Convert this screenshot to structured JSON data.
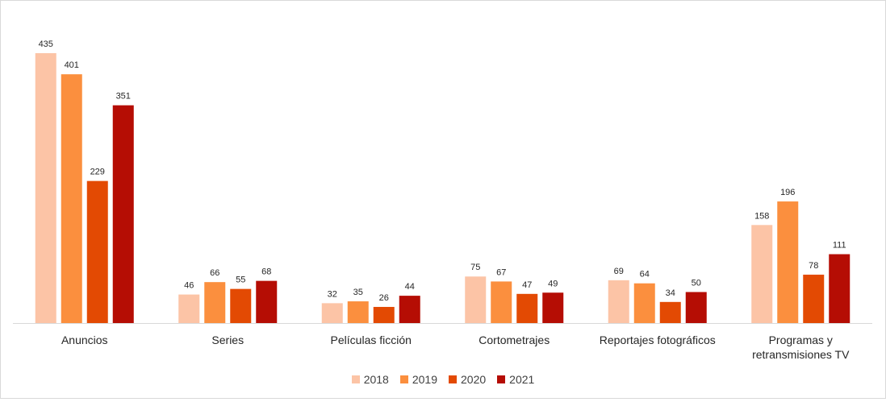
{
  "chart_data": {
    "type": "bar",
    "title": "",
    "xlabel": "",
    "ylabel": "",
    "ylim": [
      0,
      460
    ],
    "grid": false,
    "legend_position": "bottom",
    "categories": [
      "Anuncios",
      "Series",
      "Películas ficción",
      "Cortometrajes",
      "Reportajes fotográficos",
      "Programas y retransmisiones TV"
    ],
    "series": [
      {
        "name": "2018",
        "color": "#fcc4a6",
        "values": [
          435,
          46,
          32,
          75,
          69,
          158
        ]
      },
      {
        "name": "2019",
        "color": "#fb8f3e",
        "values": [
          401,
          66,
          35,
          67,
          64,
          196
        ]
      },
      {
        "name": "2020",
        "color": "#e34a03",
        "values": [
          229,
          55,
          26,
          47,
          34,
          78
        ]
      },
      {
        "name": "2021",
        "color": "#b50d04",
        "values": [
          351,
          68,
          44,
          49,
          50,
          111
        ]
      }
    ]
  }
}
